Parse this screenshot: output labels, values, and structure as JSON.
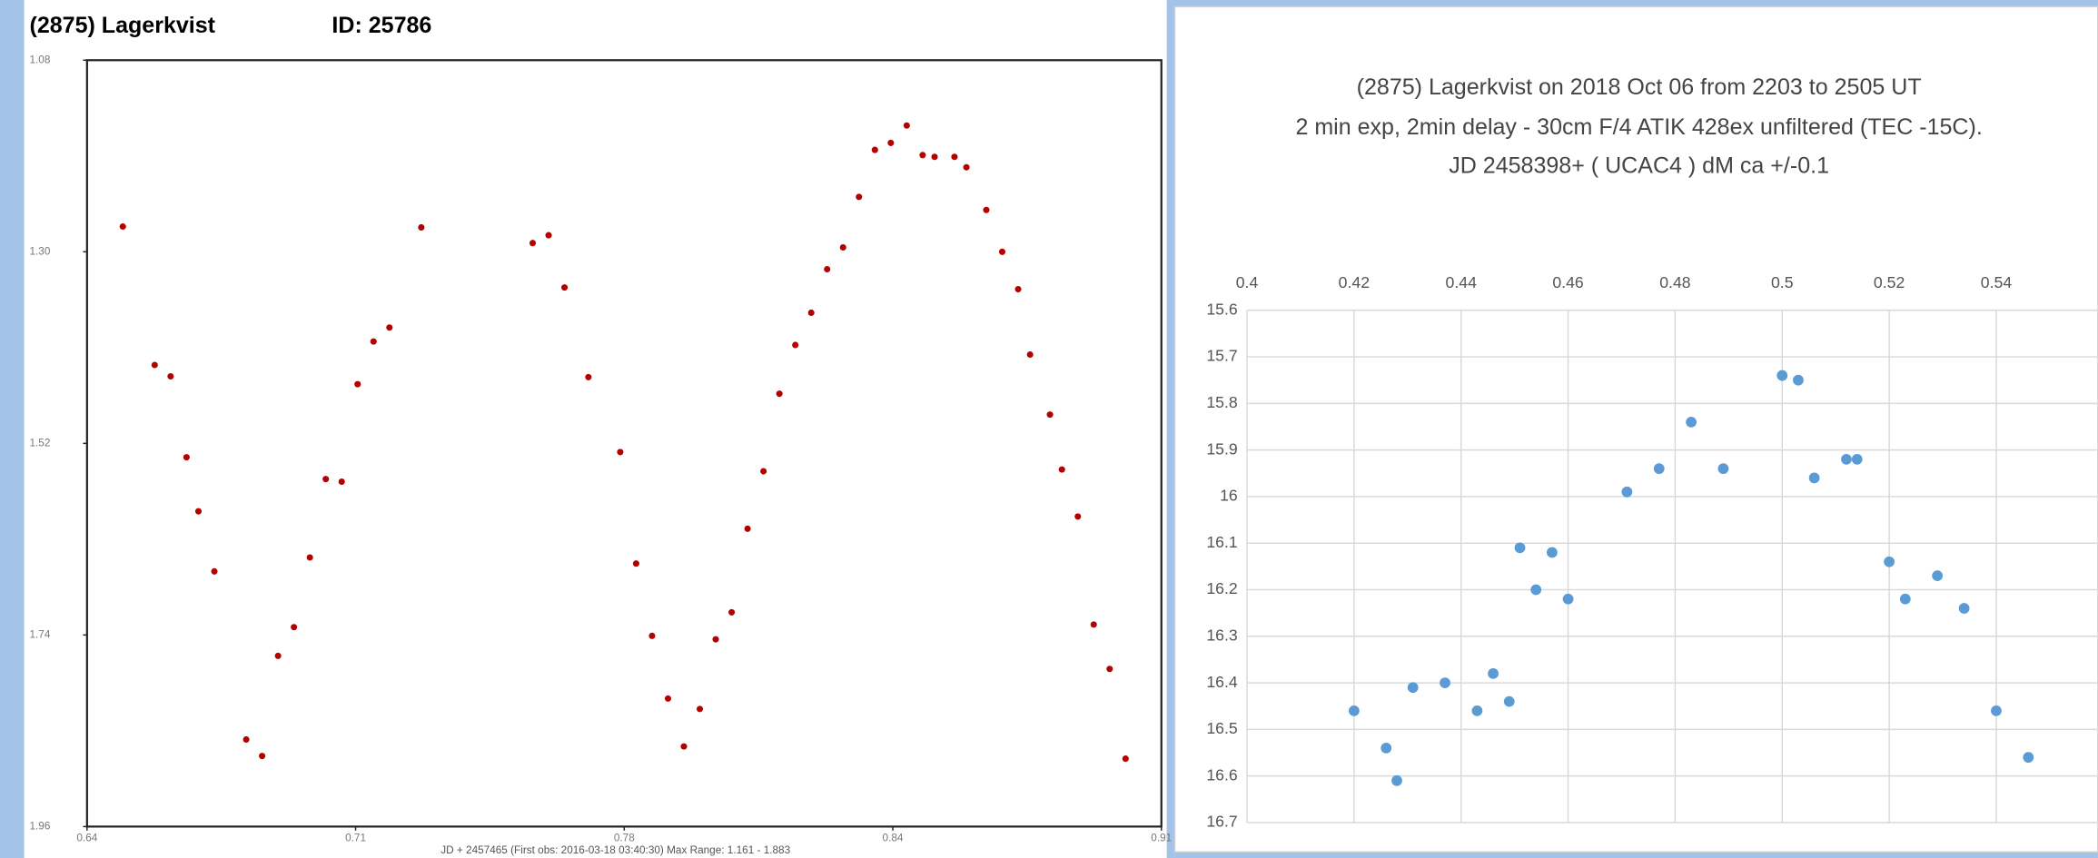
{
  "chart_data": [
    {
      "type": "scatter",
      "title": "(2875) Lagerkvist",
      "id_label": "ID: 25786",
      "xlabel": "JD + 2457465  (First obs: 2016-03-18 03:40:30)  Max Range: 1.161 - 1.883",
      "color": "#b30000",
      "y_inverted": true,
      "grid": false,
      "xlim": [
        0.64,
        0.91
      ],
      "ylim": [
        1.08,
        1.96
      ],
      "xticks": [
        {
          "value": 0.64,
          "label": "0.64"
        },
        {
          "value": 0.7075,
          "label": "0.71"
        },
        {
          "value": 0.775,
          "label": "0.78"
        },
        {
          "value": 0.8425,
          "label": "0.84"
        },
        {
          "value": 0.91,
          "label": "0.91"
        }
      ],
      "yticks": [
        {
          "value": 1.08,
          "label": "1.08"
        },
        {
          "value": 1.3,
          "label": "1.30"
        },
        {
          "value": 1.52,
          "label": "1.52"
        },
        {
          "value": 1.74,
          "label": "1.74"
        },
        {
          "value": 1.96,
          "label": "1.96"
        }
      ],
      "x": [
        0.649,
        0.657,
        0.661,
        0.665,
        0.668,
        0.672,
        0.68,
        0.684,
        0.688,
        0.692,
        0.696,
        0.7,
        0.704,
        0.708,
        0.712,
        0.716,
        0.724,
        0.752,
        0.756,
        0.76,
        0.766,
        0.774,
        0.778,
        0.782,
        0.786,
        0.79,
        0.794,
        0.798,
        0.802,
        0.806,
        0.81,
        0.814,
        0.818,
        0.822,
        0.826,
        0.83,
        0.834,
        0.838,
        0.842,
        0.846,
        0.85,
        0.853,
        0.858,
        0.861,
        0.866,
        0.87,
        0.874,
        0.877,
        0.882,
        0.885,
        0.889,
        0.893,
        0.897,
        0.901
      ],
      "values": [
        1.271,
        1.43,
        1.443,
        1.536,
        1.598,
        1.667,
        1.86,
        1.879,
        1.764,
        1.731,
        1.651,
        1.561,
        1.564,
        1.452,
        1.403,
        1.387,
        1.272,
        1.29,
        1.281,
        1.341,
        1.444,
        1.53,
        1.658,
        1.741,
        1.813,
        1.868,
        1.825,
        1.745,
        1.714,
        1.618,
        1.552,
        1.463,
        1.407,
        1.37,
        1.32,
        1.295,
        1.237,
        1.183,
        1.175,
        1.155,
        1.189,
        1.191,
        1.191,
        1.203,
        1.252,
        1.3,
        1.343,
        1.418,
        1.487,
        1.55,
        1.604,
        1.728,
        1.779,
        1.882
      ]
    },
    {
      "type": "scatter",
      "title_lines": [
        "(2875) Lagerkvist on 2018 Oct 06 from 2203 to 2505 UT",
        "2 min exp, 2min delay - 30cm F/4 ATIK 428ex unfiltered (TEC -15C).",
        "JD 2458398+      ( UCAC4 )      dM  ca +/-0.1"
      ],
      "color": "#5b9bd5",
      "y_inverted": true,
      "grid": true,
      "xlim": [
        0.4,
        0.559
      ],
      "ylim": [
        15.6,
        16.7
      ],
      "xticks": [
        0.4,
        0.42,
        0.44,
        0.46,
        0.48,
        0.5,
        0.52,
        0.54
      ],
      "yticks": [
        15.6,
        15.7,
        15.8,
        15.9,
        16,
        16.1,
        16.2,
        16.3,
        16.4,
        16.5,
        16.6,
        16.7
      ],
      "x": [
        0.42,
        0.426,
        0.428,
        0.431,
        0.437,
        0.443,
        0.446,
        0.449,
        0.451,
        0.454,
        0.457,
        0.46,
        0.471,
        0.477,
        0.483,
        0.489,
        0.5,
        0.503,
        0.506,
        0.512,
        0.514,
        0.52,
        0.523,
        0.529,
        0.534,
        0.54,
        0.546
      ],
      "values": [
        16.46,
        16.54,
        16.61,
        16.41,
        16.4,
        16.46,
        16.38,
        16.44,
        16.11,
        16.2,
        16.12,
        16.22,
        15.99,
        15.94,
        15.84,
        15.94,
        15.74,
        15.75,
        15.96,
        15.92,
        15.92,
        16.14,
        16.22,
        16.17,
        16.24,
        16.46,
        16.56
      ]
    }
  ]
}
